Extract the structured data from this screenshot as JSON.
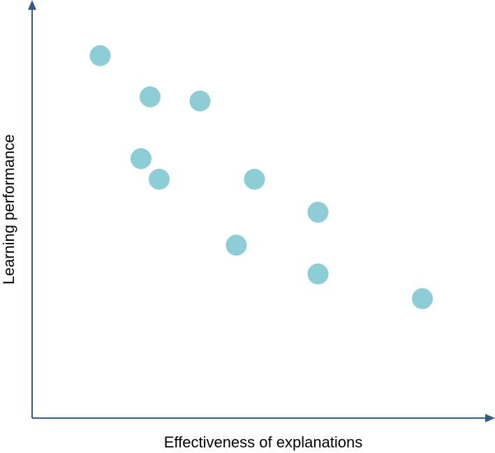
{
  "chart_data": {
    "type": "scatter",
    "x_label": "Effectiveness of explanations",
    "y_label": "Learning performance",
    "x": [
      15,
      26,
      37,
      24,
      28,
      49,
      63,
      45,
      63,
      86
    ],
    "values": [
      88,
      78,
      77,
      63,
      58,
      58,
      50,
      42,
      35,
      29
    ],
    "color": "#8ccdd6",
    "xlim": [
      0,
      100
    ],
    "ylim": [
      0,
      100
    ]
  }
}
